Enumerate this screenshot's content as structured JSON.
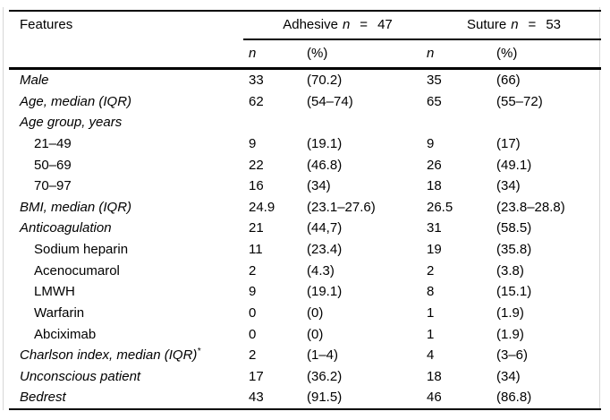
{
  "page": {
    "background": "#ffffff",
    "text_color": "#000000",
    "rule_color": "#000000",
    "frame_color": "#d7d7d7"
  },
  "table": {
    "header": {
      "features_label": "Features",
      "groups": [
        {
          "name": "Adhesive",
          "var": "n",
          "eq": "=",
          "value": "47"
        },
        {
          "name": "Suture",
          "var": "n",
          "eq": "=",
          "value": "53"
        }
      ],
      "subcolumns": [
        "n",
        "(%)",
        "n",
        "(%)"
      ]
    },
    "rows": [
      {
        "label": "Male",
        "italic": true,
        "indent": false,
        "sup": "",
        "values": [
          "33",
          "(70.2)",
          "35",
          "(66)"
        ]
      },
      {
        "label": "Age, median (IQR)",
        "italic": true,
        "indent": false,
        "sup": "",
        "values": [
          "62",
          "(54–74)",
          "65",
          "(55–72)"
        ]
      },
      {
        "label": "Age group, years",
        "italic": true,
        "indent": false,
        "sup": "",
        "values": [
          "",
          "",
          "",
          ""
        ]
      },
      {
        "label": "21–49",
        "italic": false,
        "indent": true,
        "sup": "",
        "values": [
          "9",
          "(19.1)",
          "9",
          "(17)"
        ]
      },
      {
        "label": "50–69",
        "italic": false,
        "indent": true,
        "sup": "",
        "values": [
          "22",
          "(46.8)",
          "26",
          "(49.1)"
        ]
      },
      {
        "label": "70–97",
        "italic": false,
        "indent": true,
        "sup": "",
        "values": [
          "16",
          "(34)",
          "18",
          "(34)"
        ]
      },
      {
        "label": "BMI, median (IQR)",
        "italic": true,
        "indent": false,
        "sup": "",
        "values": [
          "24.9",
          "(23.1–27.6)",
          "26.5",
          "(23.8–28.8)"
        ]
      },
      {
        "label": "Anticoagulation",
        "italic": true,
        "indent": false,
        "sup": "",
        "values": [
          "21",
          "(44,7)",
          "31",
          "(58.5)"
        ]
      },
      {
        "label": "Sodium heparin",
        "italic": false,
        "indent": true,
        "sup": "",
        "values": [
          "11",
          "(23.4)",
          "19",
          "(35.8)"
        ]
      },
      {
        "label": "Acenocumarol",
        "italic": false,
        "indent": true,
        "sup": "",
        "values": [
          "2",
          "(4.3)",
          "2",
          "(3.8)"
        ]
      },
      {
        "label": "LMWH",
        "italic": false,
        "indent": true,
        "sup": "",
        "values": [
          "9",
          "(19.1)",
          "8",
          "(15.1)"
        ]
      },
      {
        "label": "Warfarin",
        "italic": false,
        "indent": true,
        "sup": "",
        "values": [
          "0",
          "(0)",
          "1",
          "(1.9)"
        ]
      },
      {
        "label": "Abciximab",
        "italic": false,
        "indent": true,
        "sup": "",
        "values": [
          "0",
          "(0)",
          "1",
          "(1.9)"
        ]
      },
      {
        "label": "Charlson index, median (IQR)",
        "italic": true,
        "indent": false,
        "sup": "*",
        "values": [
          "2",
          "(1–4)",
          "4",
          "(3–6)"
        ]
      },
      {
        "label": "Unconscious patient",
        "italic": true,
        "indent": false,
        "sup": "",
        "values": [
          "17",
          "(36.2)",
          "18",
          "(34)"
        ]
      },
      {
        "label": "Bedrest",
        "italic": true,
        "indent": false,
        "sup": "",
        "values": [
          "43",
          "(91.5)",
          "46",
          "(86.8)"
        ]
      }
    ]
  }
}
